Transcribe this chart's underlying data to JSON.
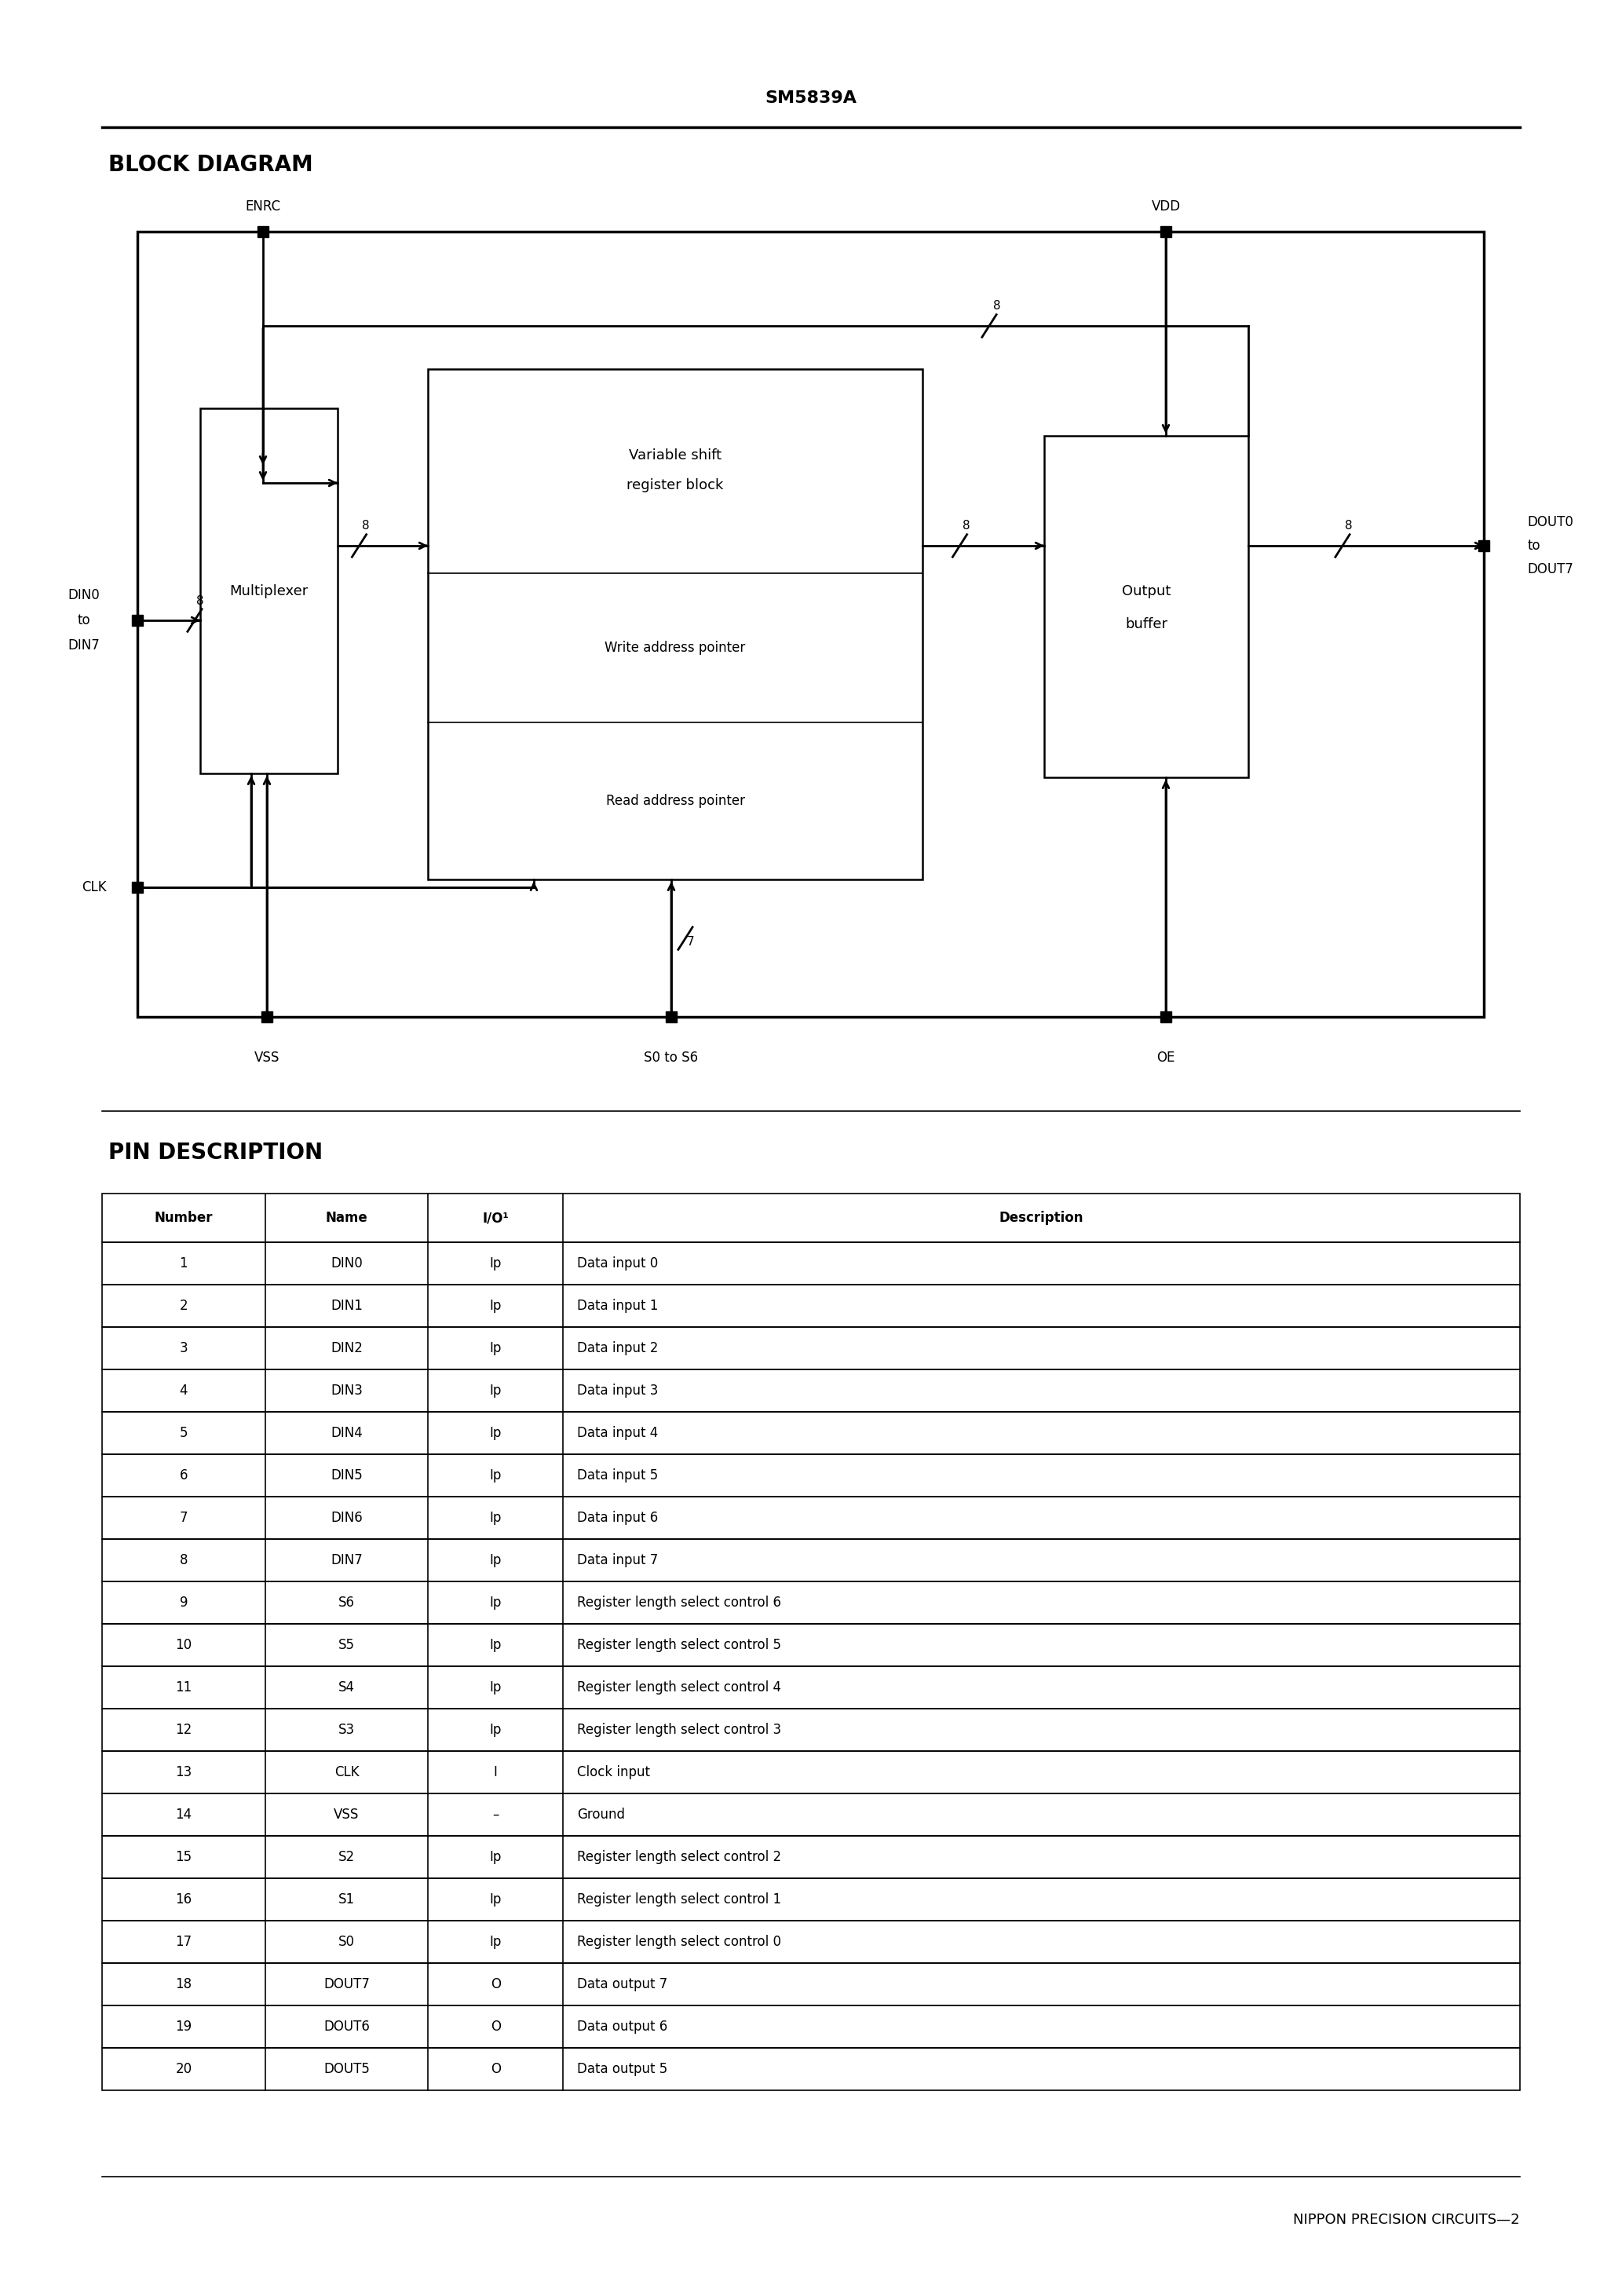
{
  "title": "SM5839A",
  "block_diagram_title": "BLOCK DIAGRAM",
  "pin_desc_title": "PIN DESCRIPTION",
  "footer_right": "NIPPON PRECISION CIRCUITS—2",
  "page_bg": "#ffffff",
  "text_color": "#000000",
  "pin_table": {
    "headers": [
      "Number",
      "Name",
      "I/O¹",
      "Description"
    ],
    "rows": [
      [
        "1",
        "DIN0",
        "Ip",
        "Data input 0"
      ],
      [
        "2",
        "DIN1",
        "Ip",
        "Data input 1"
      ],
      [
        "3",
        "DIN2",
        "Ip",
        "Data input 2"
      ],
      [
        "4",
        "DIN3",
        "Ip",
        "Data input 3"
      ],
      [
        "5",
        "DIN4",
        "Ip",
        "Data input 4"
      ],
      [
        "6",
        "DIN5",
        "Ip",
        "Data input 5"
      ],
      [
        "7",
        "DIN6",
        "Ip",
        "Data input 6"
      ],
      [
        "8",
        "DIN7",
        "Ip",
        "Data input 7"
      ],
      [
        "9",
        "S6",
        "Ip",
        "Register length select control 6"
      ],
      [
        "10",
        "S5",
        "Ip",
        "Register length select control 5"
      ],
      [
        "11",
        "S4",
        "Ip",
        "Register length select control 4"
      ],
      [
        "12",
        "S3",
        "Ip",
        "Register length select control 3"
      ],
      [
        "13",
        "CLK",
        "I",
        "Clock input"
      ],
      [
        "14",
        "VSS",
        "–",
        "Ground"
      ],
      [
        "15",
        "S2",
        "Ip",
        "Register length select control 2"
      ],
      [
        "16",
        "S1",
        "Ip",
        "Register length select control 1"
      ],
      [
        "17",
        "S0",
        "Ip",
        "Register length select control 0"
      ],
      [
        "18",
        "DOUT7",
        "O",
        "Data output 7"
      ],
      [
        "19",
        "DOUT6",
        "O",
        "Data output 6"
      ],
      [
        "20",
        "DOUT5",
        "O",
        "Data output 5"
      ]
    ]
  }
}
